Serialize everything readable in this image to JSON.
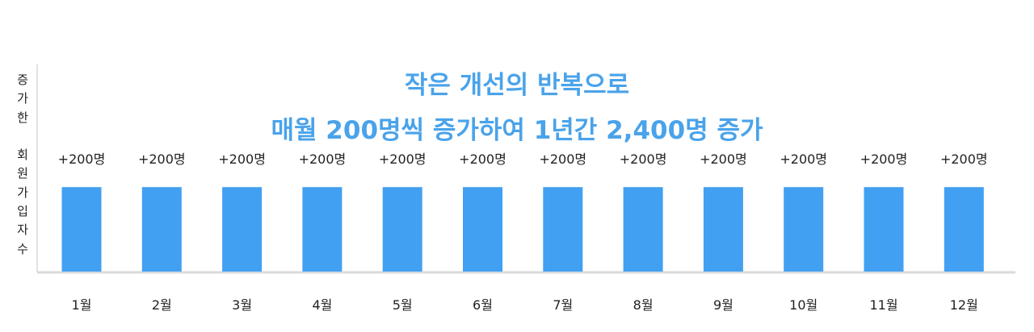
{
  "colors": {
    "bar": "#42a0f2",
    "title": "#4aa3ea",
    "axis": "#d9d9d9",
    "text": "#222222"
  },
  "chart_data": {
    "type": "bar",
    "title_lines": [
      "작은 개선의 반복으로",
      "매월 200명씩 증가하여 1년간 2,400명 증가"
    ],
    "ylabel": "증가한 회원가입자수",
    "ylabel_chars": [
      "증",
      "가",
      "한",
      " ",
      "회",
      "원",
      "가",
      "입",
      "자",
      "수"
    ],
    "xlabel": "",
    "categories": [
      "1월",
      "2월",
      "3월",
      "4월",
      "5월",
      "6월",
      "7월",
      "8월",
      "9월",
      "10월",
      "11월",
      "12월"
    ],
    "values": [
      200,
      200,
      200,
      200,
      200,
      200,
      200,
      200,
      200,
      200,
      200,
      200
    ],
    "data_labels": [
      "+200명",
      "+200명",
      "+200명",
      "+200명",
      "+200명",
      "+200명",
      "+200명",
      "+200명",
      "+200명",
      "+200명",
      "+200명",
      "+200명"
    ],
    "ylim": [
      0,
      500
    ],
    "grid": false,
    "legend": "none"
  }
}
